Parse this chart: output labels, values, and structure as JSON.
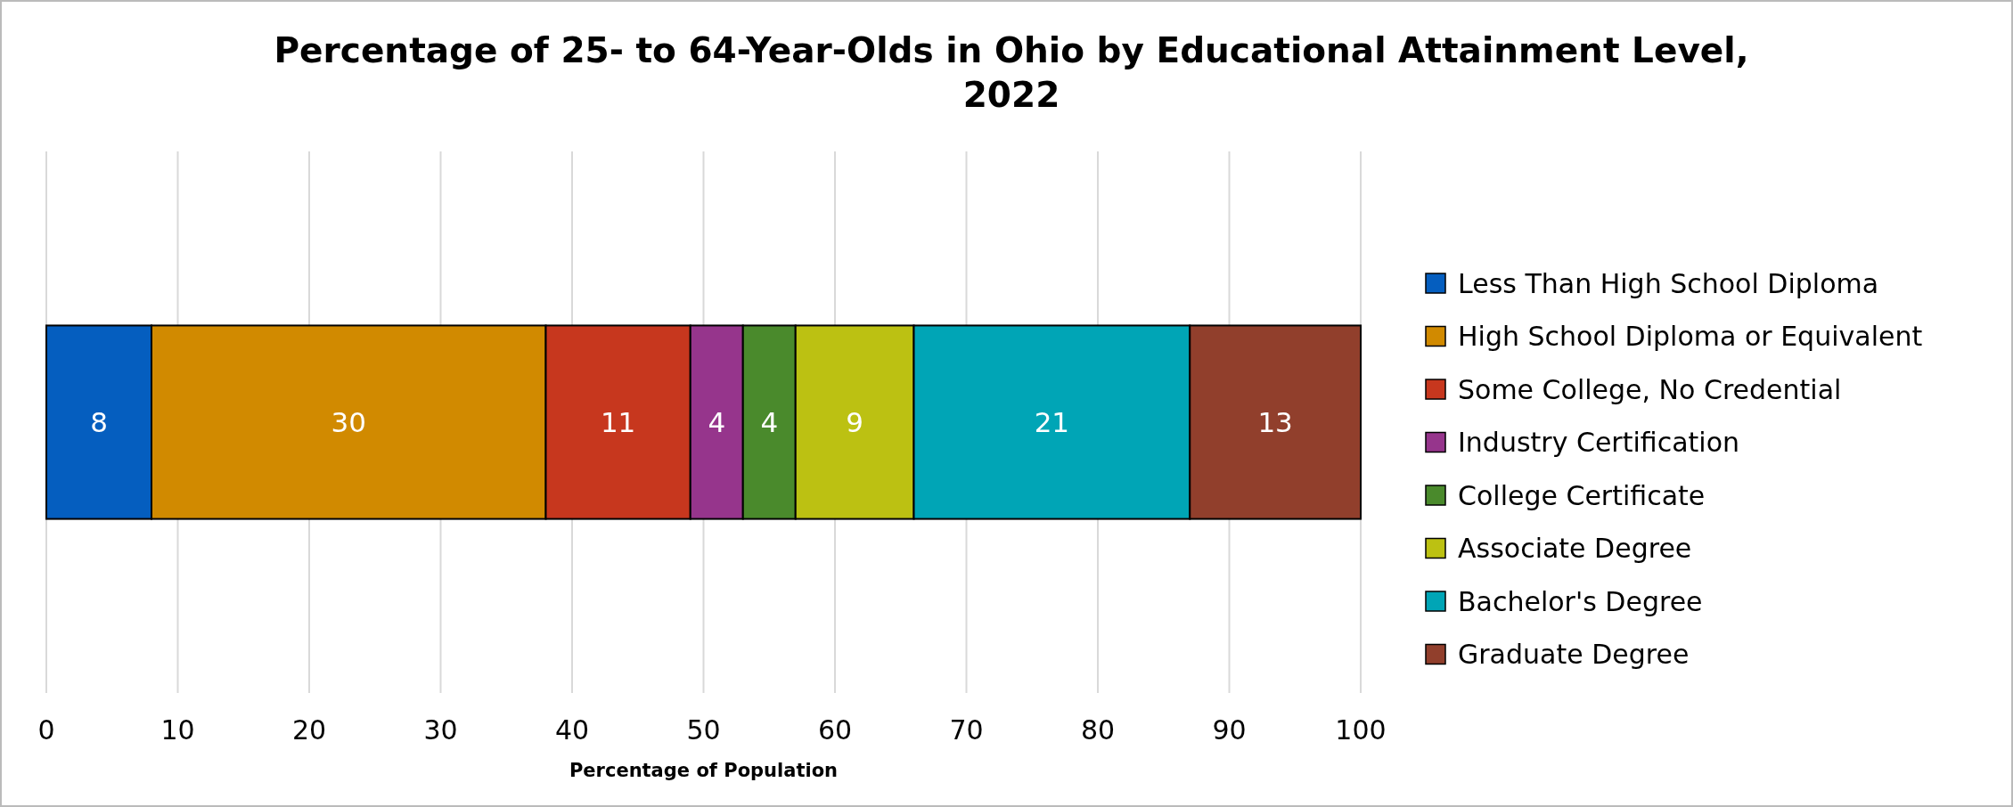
{
  "chart_data": {
    "type": "bar",
    "title": "Percentage of 25- to 64-Year-Olds in Ohio by Educational Attainment Level, 2022",
    "xlabel": "Percentage of Population",
    "orientation": "horizontal",
    "stacked": true,
    "categories": [
      null
    ],
    "series": [
      {
        "name": "Less Than High School Diploma",
        "color": "#055ebf",
        "values": [
          8
        ]
      },
      {
        "name": "High School Diploma or Equivalent",
        "color": "#d18a00",
        "values": [
          30
        ]
      },
      {
        "name": "Some College, No Credential",
        "color": "#c7371e",
        "values": [
          11
        ]
      },
      {
        "name": "Industry Certification",
        "color": "#96358c",
        "values": [
          4
        ]
      },
      {
        "name": "College Certificate",
        "color": "#4a8a2c",
        "values": [
          4
        ]
      },
      {
        "name": "Associate Degree",
        "color": "#bcc112",
        "values": [
          9
        ]
      },
      {
        "name": "Bachelor's Degree",
        "color": "#00a5b6",
        "values": [
          21
        ]
      },
      {
        "name": "Graduate Degree",
        "color": "#913f2c",
        "values": [
          13
        ]
      }
    ],
    "xlim": [
      0,
      100
    ],
    "xticks": [
      0,
      10,
      20,
      30,
      40,
      50,
      60,
      70,
      80,
      90,
      100
    ],
    "grid": "x",
    "legend": "right",
    "data_labels": true
  }
}
